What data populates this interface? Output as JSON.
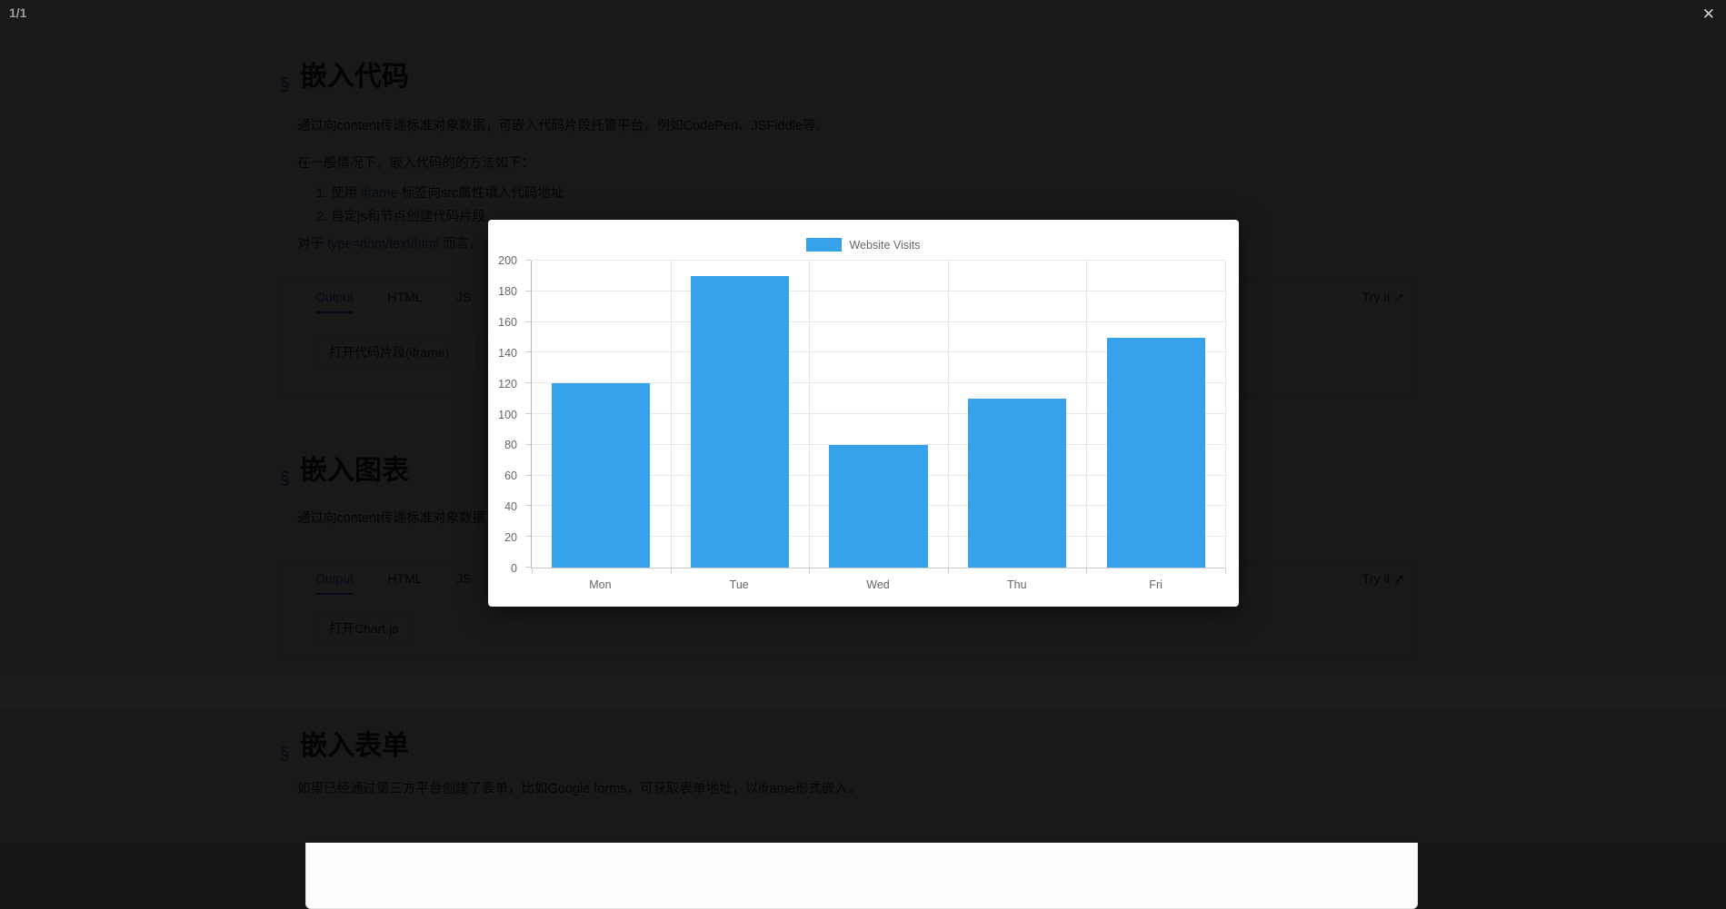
{
  "viewer": {
    "counter": "1/1",
    "close_label": "✕"
  },
  "colors": {
    "accent": "#3a62f0",
    "bar": "#36a2eb",
    "chart_text": "#666666",
    "overlay": "#000000e6"
  },
  "doc": {
    "section_marker": "§",
    "sections": [
      {
        "heading": "嵌入代码"
      },
      {
        "heading": "嵌入图表"
      },
      {
        "heading": "嵌入表单"
      }
    ],
    "paragraphs": {
      "p1": "通过向content传递标准对象数据，可嵌入代码片段托管平台，例如CodePen、JSFiddle等。",
      "p2": "在一般情况下，嵌入代码的的方法如下：",
      "li1_num": "1.",
      "li1_pre": "使用 ",
      "li1_link": "iframe",
      "li1_post": " 标签向src属性填入代码地址",
      "li2_num": "2.",
      "li2": "自定js和节点创建代码片段",
      "p3_pre": "对于 ",
      "p3_code": "type=dom/text/html",
      "p3_post": " 而言，",
      "p4": "通过向content传递标准对象数据",
      "p5": "如果已经通过第三方平台创建了表单，比如Google forms，可获取表单地址，以iframe形式嵌入。"
    },
    "tabs": {
      "output": "Output",
      "html": "HTML",
      "js": "JS",
      "try_it": "Try it",
      "try_icon": "↗"
    },
    "buttons": {
      "open_snippet": "打开代码片段(iframe)",
      "partial": "打",
      "open_chart": "打开Chart.js"
    }
  },
  "chart_data": {
    "type": "bar",
    "title": "",
    "series_name": "Website Visits",
    "categories": [
      "Mon",
      "Tue",
      "Wed",
      "Thu",
      "Fri"
    ],
    "values": [
      120,
      190,
      80,
      110,
      150
    ],
    "ylim": [
      0,
      200
    ],
    "ytick_step": 20,
    "xlabel": "",
    "ylabel": "",
    "grid": true,
    "legend_position": "top",
    "bar_color": "#36a2eb"
  }
}
